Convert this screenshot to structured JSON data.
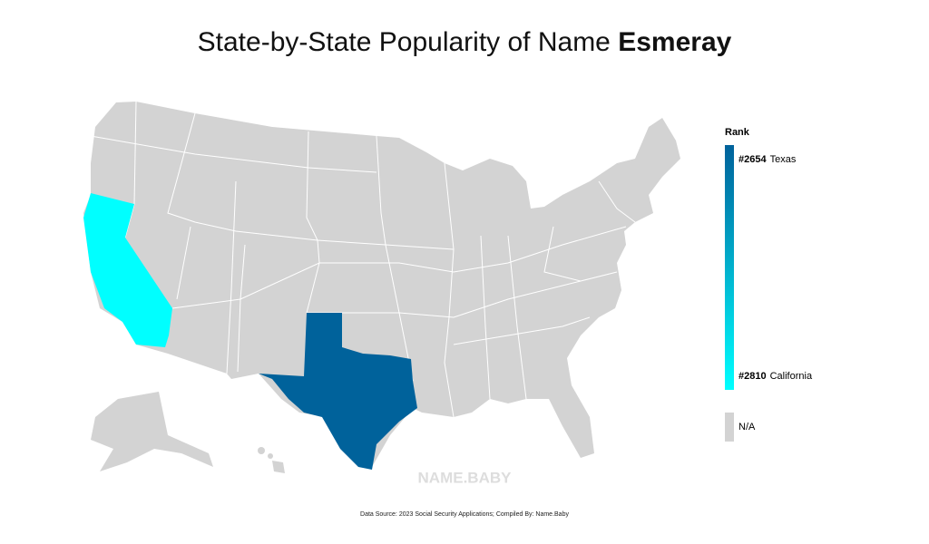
{
  "title": {
    "prefix": "State-by-State Popularity of Name ",
    "name": "Esmeray"
  },
  "legend": {
    "title": "Rank",
    "entries": [
      {
        "rank": 2654,
        "rank_label": "#2654",
        "state": "Texas"
      },
      {
        "rank": 2810,
        "rank_label": "#2810",
        "state": "California"
      }
    ],
    "color_high": "#00629b",
    "color_low": "#00ffff",
    "na_label": "N/A",
    "na_color": "#d3d3d3"
  },
  "watermark": "NAME.BABY",
  "footer": "Data Source: 2023 Social Security Applications; Compiled By: Name.Baby"
}
